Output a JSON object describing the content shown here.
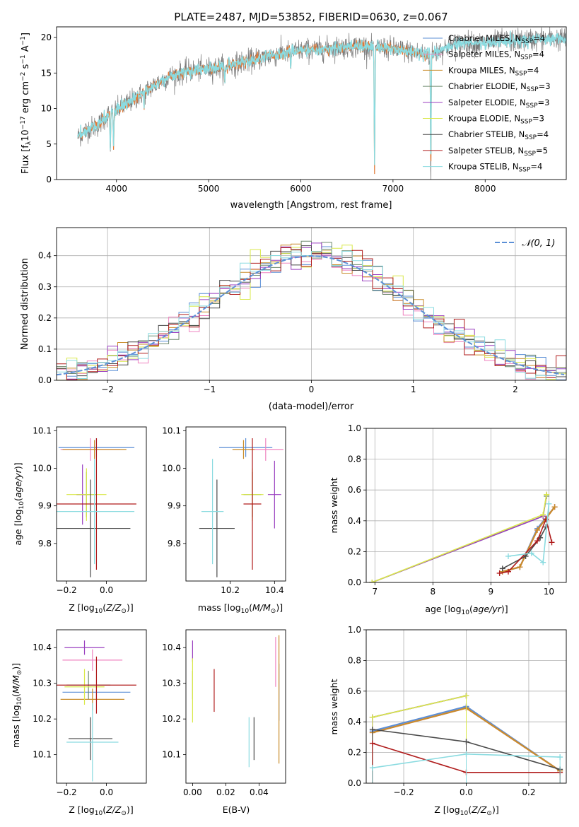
{
  "figure": {
    "title": "PLATE=2487, MJD=53852, FIBERID=0630, z=0.067"
  },
  "colors": {
    "Chabrier MILES": "#5b8fd6",
    "Salpeter MILES": "#ef84c0",
    "Kroupa MILES": "#c98c2a",
    "Chabrier ELODIE": "#6f8a6f",
    "Salpeter ELODIE": "#9a3fc0",
    "Kroupa ELODIE": "#d9e84a",
    "Chabrier STELIB": "#4a4a4a",
    "Salpeter STELIB": "#b01c1c",
    "Kroupa STELIB": "#8adbe0",
    "orange_overlay": "#e07b3a",
    "normal_curve": "#5b8fd6"
  },
  "chart_data": [
    {
      "id": "spectrum",
      "type": "line",
      "title": "PLATE=2487, MJD=53852, FIBERID=0630, z=0.067",
      "xlabel": "wavelength [Angstrom, rest frame]",
      "ylabel": "Flux [fλ10⁻¹⁷ erg cm⁻² s⁻¹ A⁻¹]",
      "xlim": [
        3350,
        8880
      ],
      "ylim": [
        0,
        21.5
      ],
      "xticks": [
        4000,
        5000,
        6000,
        7000,
        8000
      ],
      "yticks": [
        0,
        5,
        10,
        15,
        20
      ],
      "grid": false,
      "legend": "top-right",
      "legend_entries": [
        {
          "name": "Chabrier MILES, N",
          "sub": "SSP",
          "val": "=4"
        },
        {
          "name": "Salpeter MILES, N",
          "sub": "SSP",
          "val": "=4"
        },
        {
          "name": "Kroupa MILES, N",
          "sub": "SSP",
          "val": "=4"
        },
        {
          "name": "Chabrier ELODIE, N",
          "sub": "SSP",
          "val": "=3"
        },
        {
          "name": "Salpeter ELODIE, N",
          "sub": "SSP",
          "val": "=3"
        },
        {
          "name": "Kroupa ELODIE, N",
          "sub": "SSP",
          "val": "=3"
        },
        {
          "name": "Chabrier STELIB, N",
          "sub": "SSP",
          "val": "=4"
        },
        {
          "name": "Salpeter STELIB, N",
          "sub": "SSP",
          "val": "=5"
        },
        {
          "name": "Kroupa STELIB, N",
          "sub": "SSP",
          "val": "=4"
        }
      ],
      "continuum": {
        "x": [
          3580,
          3700,
          3800,
          3900,
          4000,
          4100,
          4200,
          4300,
          4400,
          4500,
          4600,
          4700,
          4800,
          4900,
          5000,
          5200,
          5400,
          5600,
          5800,
          6000,
          6200,
          6400,
          6600,
          6800,
          7000,
          7200,
          7400,
          7600,
          7800,
          8000,
          8200,
          8400,
          8600,
          8880
        ],
        "y": [
          6.0,
          7.2,
          7.6,
          9.0,
          9.8,
          10.6,
          11.4,
          12.3,
          13.2,
          14.0,
          14.6,
          15.0,
          15.3,
          15.4,
          15.6,
          16.0,
          16.6,
          17.2,
          17.8,
          18.2,
          18.3,
          18.6,
          18.8,
          18.7,
          18.4,
          18.0,
          17.5,
          18.8,
          19.2,
          19.1,
          19.5,
          19.6,
          19.8,
          19.8
        ]
      },
      "model_x_range": [
        3580,
        7450
      ],
      "absorption_lines": [
        {
          "x": 3933,
          "depth": 5.5
        },
        {
          "x": 3968,
          "depth": 5.5
        },
        {
          "x": 4300,
          "depth": 2.0
        },
        {
          "x": 5175,
          "depth": 2.5
        },
        {
          "x": 5890,
          "depth": 2.5
        },
        {
          "x": 6800,
          "depth": 18.7
        },
        {
          "x": 7410,
          "depth": 17.5
        }
      ]
    },
    {
      "id": "residuals",
      "type": "line",
      "xlabel": "(data-model)/error",
      "ylabel": "Normed distribution",
      "xlim": [
        -2.5,
        2.5
      ],
      "ylim": [
        0,
        0.49
      ],
      "xticks": [
        -2,
        -1,
        0,
        1,
        2
      ],
      "yticks": [
        0.0,
        0.1,
        0.2,
        0.3,
        0.4
      ],
      "grid": true,
      "legend": "top-right",
      "legend_label": "𝒩(0, 1)",
      "bin_width": 0.1
    },
    {
      "id": "age_vs_Z",
      "type": "scatter",
      "xlabel": "Z [log₁₀(Z/Z⊙)]",
      "ylabel": "age  [log₁₀(age/yr)]",
      "xlim": [
        -0.25,
        0.2
      ],
      "ylim": [
        9.7,
        10.11
      ],
      "xticks": [
        -0.2,
        0.0
      ],
      "yticks": [
        9.8,
        9.9,
        10.0,
        10.1
      ],
      "points": [
        {
          "model": "Chabrier MILES",
          "x": -0.05,
          "y": 10.055,
          "xerr": 0.19,
          "yerr": 0.025
        },
        {
          "model": "Salpeter MILES",
          "x": -0.08,
          "y": 10.05,
          "xerr": 0.15,
          "yerr": 0.03
        },
        {
          "model": "Kroupa MILES",
          "x": -0.06,
          "y": 10.05,
          "xerr": 0.16,
          "yerr": 0.025
        },
        {
          "model": "Chabrier ELODIE",
          "x": -0.1,
          "y": 9.93,
          "xerr": 0.05,
          "yerr": 0.06
        },
        {
          "model": "Salpeter ELODIE",
          "x": -0.12,
          "y": 9.93,
          "xerr": 0.03,
          "yerr": 0.08
        },
        {
          "model": "Kroupa ELODIE",
          "x": -0.1,
          "y": 9.93,
          "xerr": 0.1,
          "yerr": 0.07
        },
        {
          "model": "Chabrier STELIB",
          "x": -0.08,
          "y": 9.84,
          "xerr": 0.2,
          "yerr": 0.13
        },
        {
          "model": "Salpeter STELIB",
          "x": -0.05,
          "y": 9.905,
          "xerr": 0.2,
          "yerr": 0.175
        },
        {
          "model": "Kroupa STELIB",
          "x": -0.06,
          "y": 9.885,
          "xerr": 0.2,
          "yerr": 0.14
        }
      ]
    },
    {
      "id": "age_vs_mass",
      "type": "scatter",
      "xlabel": "mass [log₁₀(M/M⊙)]",
      "xlim": [
        10.0,
        10.45
      ],
      "ylim": [
        9.7,
        10.11
      ],
      "xticks": [
        10.2,
        10.4
      ],
      "yticks": [
        9.8,
        9.9,
        10.0,
        10.1
      ],
      "points": [
        {
          "model": "Chabrier MILES",
          "x": 10.27,
          "y": 10.055,
          "xerr": 0.12,
          "yerr": 0.025
        },
        {
          "model": "Salpeter MILES",
          "x": 10.36,
          "y": 10.05,
          "xerr": 0.08,
          "yerr": 0.03
        },
        {
          "model": "Kroupa MILES",
          "x": 10.26,
          "y": 10.05,
          "xerr": 0.05,
          "yerr": 0.025
        },
        {
          "model": "Chabrier ELODIE",
          "x": 10.3,
          "y": 9.93,
          "xerr": 0.04,
          "yerr": 0.06
        },
        {
          "model": "Salpeter ELODIE",
          "x": 10.4,
          "y": 9.93,
          "xerr": 0.03,
          "yerr": 0.09
        },
        {
          "model": "Kroupa ELODIE",
          "x": 10.3,
          "y": 9.93,
          "xerr": 0.05,
          "yerr": 0.07
        },
        {
          "model": "Chabrier STELIB",
          "x": 10.14,
          "y": 9.84,
          "xerr": 0.08,
          "yerr": 0.13
        },
        {
          "model": "Salpeter STELIB",
          "x": 10.3,
          "y": 9.905,
          "xerr": 0.04,
          "yerr": 0.175
        },
        {
          "model": "Kroupa STELIB",
          "x": 10.12,
          "y": 9.885,
          "xerr": 0.05,
          "yerr": 0.14
        }
      ]
    },
    {
      "id": "weight_vs_age",
      "type": "line",
      "xlabel": "age  [log₁₀(age/yr)]",
      "ylabel": "mass weight",
      "xlim": [
        6.85,
        10.3
      ],
      "ylim": [
        0,
        1.0
      ],
      "xticks": [
        7,
        8,
        9,
        10
      ],
      "yticks": [
        0.0,
        0.2,
        0.4,
        0.6,
        0.8,
        1.0
      ],
      "grid": true,
      "series": [
        {
          "model": "Chabrier MILES",
          "x": [
            9.2,
            9.5,
            9.8,
            10.1
          ],
          "y": [
            0.07,
            0.1,
            0.35,
            0.49
          ]
        },
        {
          "model": "Salpeter MILES",
          "x": [
            9.2,
            9.5,
            9.8,
            10.1
          ],
          "y": [
            0.07,
            0.1,
            0.34,
            0.49
          ]
        },
        {
          "model": "Kroupa MILES",
          "x": [
            9.2,
            9.5,
            9.8,
            10.1
          ],
          "y": [
            0.07,
            0.1,
            0.34,
            0.49
          ]
        },
        {
          "model": "Chabrier ELODIE",
          "x": [
            6.95,
            9.9,
            9.96
          ],
          "y": [
            0.0,
            0.43,
            0.56
          ]
        },
        {
          "model": "Salpeter ELODIE",
          "x": [
            6.95,
            9.9,
            9.96
          ],
          "y": [
            0.0,
            0.43,
            0.57
          ]
        },
        {
          "model": "Kroupa ELODIE",
          "x": [
            6.95,
            9.9,
            9.96
          ],
          "y": [
            0.0,
            0.44,
            0.57
          ]
        },
        {
          "model": "Chabrier STELIB",
          "x": [
            9.2,
            9.6,
            9.85,
            9.95
          ],
          "y": [
            0.09,
            0.17,
            0.29,
            0.36
          ]
        },
        {
          "model": "Salpeter STELIB",
          "x": [
            9.15,
            9.3,
            9.8,
            9.95,
            10.05
          ],
          "y": [
            0.06,
            0.07,
            0.27,
            0.41,
            0.26
          ]
        },
        {
          "model": "Kroupa STELIB",
          "x": [
            9.3,
            9.7,
            9.9,
            10.0
          ],
          "y": [
            0.17,
            0.19,
            0.13,
            0.51
          ]
        }
      ]
    },
    {
      "id": "mass_vs_Z",
      "type": "scatter",
      "xlabel": "Z [log₁₀(Z/Z⊙)]",
      "ylabel": "mass [log₁₀(M/M⊙)]",
      "xlim": [
        -0.25,
        0.2
      ],
      "ylim": [
        10.02,
        10.45
      ],
      "xticks": [
        -0.2,
        0.0
      ],
      "yticks": [
        10.1,
        10.2,
        10.3,
        10.4
      ],
      "points": [
        {
          "model": "Chabrier MILES",
          "x": -0.05,
          "y": 10.275,
          "xerr": 0.17,
          "yerr": 0.02
        },
        {
          "model": "Salpeter MILES",
          "x": -0.07,
          "y": 10.365,
          "xerr": 0.15,
          "yerr": 0.03
        },
        {
          "model": "Kroupa MILES",
          "x": -0.07,
          "y": 10.255,
          "xerr": 0.16,
          "yerr": 0.03
        },
        {
          "model": "Chabrier ELODIE",
          "x": -0.09,
          "y": 10.295,
          "xerr": 0.11,
          "yerr": 0.04
        },
        {
          "model": "Salpeter ELODIE",
          "x": -0.11,
          "y": 10.4,
          "xerr": 0.1,
          "yerr": 0.02
        },
        {
          "model": "Kroupa ELODIE",
          "x": -0.11,
          "y": 10.29,
          "xerr": 0.1,
          "yerr": 0.05
        },
        {
          "model": "Chabrier STELIB",
          "x": -0.08,
          "y": 10.145,
          "xerr": 0.11,
          "yerr": 0.06
        },
        {
          "model": "Salpeter STELIB",
          "x": -0.05,
          "y": 10.295,
          "xerr": 0.2,
          "yerr": 0.08
        },
        {
          "model": "Kroupa STELIB",
          "x": -0.07,
          "y": 10.135,
          "xerr": 0.13,
          "yerr": 0.11
        }
      ]
    },
    {
      "id": "mass_vs_ebv",
      "type": "scatter",
      "xlabel": "E(B-V)",
      "xlim": [
        -0.004,
        0.056
      ],
      "ylim": [
        10.02,
        10.45
      ],
      "xticks": [
        0.0,
        0.02,
        0.04
      ],
      "yticks": [
        10.1,
        10.2,
        10.3,
        10.4
      ],
      "points": [
        {
          "model": "Chabrier MILES",
          "x": 0.052,
          "y": 10.275,
          "yerr": 0.08
        },
        {
          "model": "Salpeter MILES",
          "x": 0.05,
          "y": 10.36,
          "yerr": 0.07
        },
        {
          "model": "Kroupa MILES",
          "x": 0.052,
          "y": 10.255,
          "yerr": 0.18
        },
        {
          "model": "Chabrier ELODIE",
          "x": 0.0,
          "y": 10.295,
          "yerr": 0.04
        },
        {
          "model": "Salpeter ELODIE",
          "x": 0.0,
          "y": 10.39,
          "yerr": 0.03
        },
        {
          "model": "Kroupa ELODIE",
          "x": 0.0,
          "y": 10.28,
          "yerr": 0.09
        },
        {
          "model": "Chabrier STELIB",
          "x": 0.037,
          "y": 10.145,
          "yerr": 0.06
        },
        {
          "model": "Salpeter STELIB",
          "x": 0.013,
          "y": 10.28,
          "yerr": 0.06
        },
        {
          "model": "Kroupa STELIB",
          "x": 0.034,
          "y": 10.135,
          "yerr": 0.07
        }
      ]
    },
    {
      "id": "weight_vs_Z",
      "type": "line",
      "xlabel": "Z [log₁₀(Z/Z⊙)]",
      "ylabel": "mass weight",
      "xlim": [
        -0.32,
        0.32
      ],
      "ylim": [
        0,
        1.0
      ],
      "xticks": [
        -0.2,
        0.0,
        0.2
      ],
      "yticks": [
        0.0,
        0.2,
        0.4,
        0.6,
        0.8,
        1.0
      ],
      "grid": true,
      "series": [
        {
          "model": "Chabrier MILES",
          "x": [
            -0.3,
            0.0,
            0.3
          ],
          "y": [
            0.34,
            0.5,
            0.08
          ]
        },
        {
          "model": "Salpeter MILES",
          "x": [
            -0.3,
            0.0,
            0.3
          ],
          "y": [
            0.33,
            0.49,
            0.08
          ]
        },
        {
          "model": "Kroupa MILES",
          "x": [
            -0.3,
            0.0,
            0.3
          ],
          "y": [
            0.33,
            0.49,
            0.08
          ]
        },
        {
          "model": "Chabrier ELODIE",
          "x": [
            -0.3,
            0.0
          ],
          "y": [
            0.43,
            0.57
          ]
        },
        {
          "model": "Salpeter ELODIE",
          "x": [
            -0.3,
            0.0
          ],
          "y": [
            0.43,
            0.57
          ]
        },
        {
          "model": "Kroupa ELODIE",
          "x": [
            -0.3,
            0.0
          ],
          "y": [
            0.43,
            0.57
          ]
        },
        {
          "model": "Chabrier STELIB",
          "x": [
            -0.3,
            0.0,
            0.3
          ],
          "y": [
            0.35,
            0.27,
            0.09
          ]
        },
        {
          "model": "Salpeter STELIB",
          "x": [
            -0.3,
            0.0,
            0.3
          ],
          "y": [
            0.26,
            0.07,
            0.07
          ]
        },
        {
          "model": "Kroupa STELIB",
          "x": [
            -0.3,
            0.0,
            0.3
          ],
          "y": [
            0.1,
            0.19,
            0.17
          ]
        }
      ]
    }
  ]
}
